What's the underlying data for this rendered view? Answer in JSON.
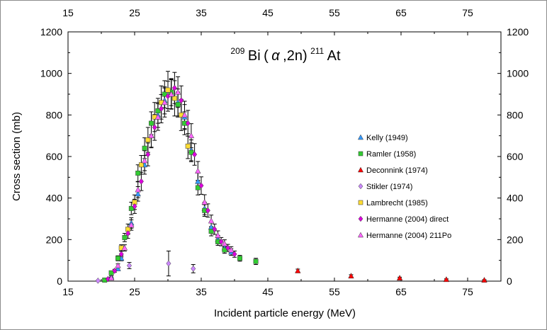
{
  "chart_data": {
    "type": "scatter",
    "title": {
      "target_mass": "209",
      "target": "Bi",
      "reaction_open": "(",
      "projectile": "α",
      "reaction_rest": ",2n)",
      "product_mass": "211",
      "product": "At"
    },
    "xlabel": "Incident particle energy (MeV)",
    "ylabel": "Cross section (mb)",
    "xlim": [
      15,
      80
    ],
    "ylim": [
      0,
      1200
    ],
    "x_ticks_bottom": [
      15,
      25,
      35,
      45,
      55,
      65,
      75
    ],
    "x_ticks_top": [
      15,
      25,
      35,
      45,
      55,
      65,
      75
    ],
    "y_ticks": [
      0,
      200,
      400,
      600,
      800,
      1000,
      1200
    ],
    "legend_position": "right",
    "series": [
      {
        "name": "Kelly (1949)",
        "marker": "triangle",
        "color": "#3399ff",
        "points": [
          [
            21.5,
            20
          ],
          [
            22.5,
            60
          ],
          [
            23,
            110
          ],
          [
            24.5,
            280
          ],
          [
            25.5,
            420
          ],
          [
            26.5,
            560
          ],
          [
            27.5,
            700
          ],
          [
            28.5,
            800
          ],
          [
            29.5,
            870
          ],
          [
            30.5,
            900
          ],
          [
            31.5,
            860
          ],
          [
            32.5,
            790
          ],
          [
            33.5,
            630
          ],
          [
            34.5,
            480
          ],
          [
            35.5,
            350
          ],
          [
            36.5,
            260
          ],
          [
            37.5,
            200
          ],
          [
            38.5,
            160
          ],
          [
            39.5,
            140
          ]
        ],
        "errors": [
          5,
          8,
          12,
          25,
          35,
          45,
          55,
          60,
          65,
          70,
          65,
          60,
          50,
          40,
          30,
          25,
          20,
          18,
          16
        ]
      },
      {
        "name": "Ramler (1958)",
        "marker": "square",
        "color": "#33cc33",
        "points": [
          [
            20.5,
            5
          ],
          [
            21.5,
            40
          ],
          [
            22.5,
            110
          ],
          [
            23.5,
            210
          ],
          [
            24.5,
            350
          ],
          [
            25.5,
            520
          ],
          [
            26.5,
            640
          ],
          [
            27.5,
            760
          ],
          [
            28.5,
            820
          ],
          [
            29.5,
            900
          ],
          [
            30.5,
            910
          ],
          [
            31.5,
            850
          ],
          [
            32.5,
            760
          ],
          [
            33.5,
            620
          ],
          [
            34.5,
            450
          ],
          [
            35.5,
            340
          ],
          [
            36.5,
            240
          ],
          [
            37.5,
            190
          ],
          [
            38.5,
            150
          ],
          [
            40.8,
            110
          ],
          [
            43.2,
            95
          ]
        ],
        "errors": [
          3,
          6,
          12,
          20,
          30,
          40,
          50,
          55,
          60,
          65,
          65,
          60,
          55,
          45,
          35,
          28,
          22,
          18,
          16,
          14,
          15
        ]
      },
      {
        "name": "Deconnink  (1974)",
        "marker": "triangle",
        "color": "#ff0000",
        "points": [
          [
            49.5,
            50
          ],
          [
            57.5,
            25
          ],
          [
            64.8,
            15
          ],
          [
            71.8,
            8
          ],
          [
            77.5,
            5
          ]
        ],
        "errors": [
          8,
          6,
          4,
          3,
          2
        ]
      },
      {
        "name": "Stikler  (1974)",
        "marker": "diamond",
        "color": "#cc88ff",
        "points": [
          [
            19.5,
            2
          ],
          [
            24.2,
            75
          ],
          [
            30.1,
            85
          ],
          [
            33.8,
            60
          ]
        ],
        "errors": [
          1,
          15,
          60,
          20
        ]
      },
      {
        "name": "Lambrecht (1985)",
        "marker": "square",
        "color": "#ffdd33",
        "points": [
          [
            23,
            160
          ],
          [
            24,
            250
          ],
          [
            25,
            380
          ],
          [
            26,
            560
          ],
          [
            27,
            680
          ],
          [
            28,
            790
          ],
          [
            29,
            860
          ],
          [
            30,
            920
          ],
          [
            31,
            880
          ],
          [
            32,
            800
          ],
          [
            33,
            650
          ]
        ],
        "errors": [
          15,
          25,
          35,
          45,
          60,
          70,
          80,
          90,
          85,
          75,
          60
        ]
      },
      {
        "name": "Hermanne (2004) direct",
        "marker": "diamond",
        "color": "#dd00dd",
        "points": [
          [
            21,
            10
          ],
          [
            22,
            50
          ],
          [
            23,
            130
          ],
          [
            24,
            230
          ],
          [
            25,
            360
          ],
          [
            26,
            480
          ],
          [
            27,
            610
          ],
          [
            28,
            740
          ],
          [
            29,
            830
          ],
          [
            30,
            890
          ],
          [
            31,
            930
          ],
          [
            32,
            870
          ],
          [
            33,
            760
          ],
          [
            34,
            610
          ],
          [
            35,
            460
          ],
          [
            36,
            340
          ],
          [
            37,
            250
          ],
          [
            38,
            190
          ],
          [
            39,
            160
          ],
          [
            40,
            130
          ]
        ],
        "errors": [
          3,
          7,
          14,
          24,
          34,
          44,
          55,
          62,
          68,
          72,
          75,
          70,
          62,
          52,
          42,
          32,
          25,
          20,
          17,
          15
        ]
      },
      {
        "name": "Hermanne (2004)  211Po",
        "marker": "triangle",
        "color": "#ff66ff",
        "points": [
          [
            21.5,
            15
          ],
          [
            22.5,
            75
          ],
          [
            23.5,
            160
          ],
          [
            24.5,
            270
          ],
          [
            25.5,
            440
          ],
          [
            26.5,
            580
          ],
          [
            27.5,
            700
          ],
          [
            28.5,
            790
          ],
          [
            29.5,
            860
          ],
          [
            30.5,
            900
          ],
          [
            31.5,
            910
          ],
          [
            32.5,
            800
          ],
          [
            33.5,
            700
          ],
          [
            34.5,
            530
          ],
          [
            35.5,
            380
          ],
          [
            36.5,
            290
          ],
          [
            37.5,
            220
          ],
          [
            38.5,
            180
          ],
          [
            39.5,
            150
          ]
        ],
        "errors": [
          4,
          8,
          15,
          25,
          38,
          48,
          58,
          64,
          70,
          72,
          74,
          66,
          58,
          46,
          36,
          28,
          22,
          19,
          16
        ]
      }
    ]
  }
}
